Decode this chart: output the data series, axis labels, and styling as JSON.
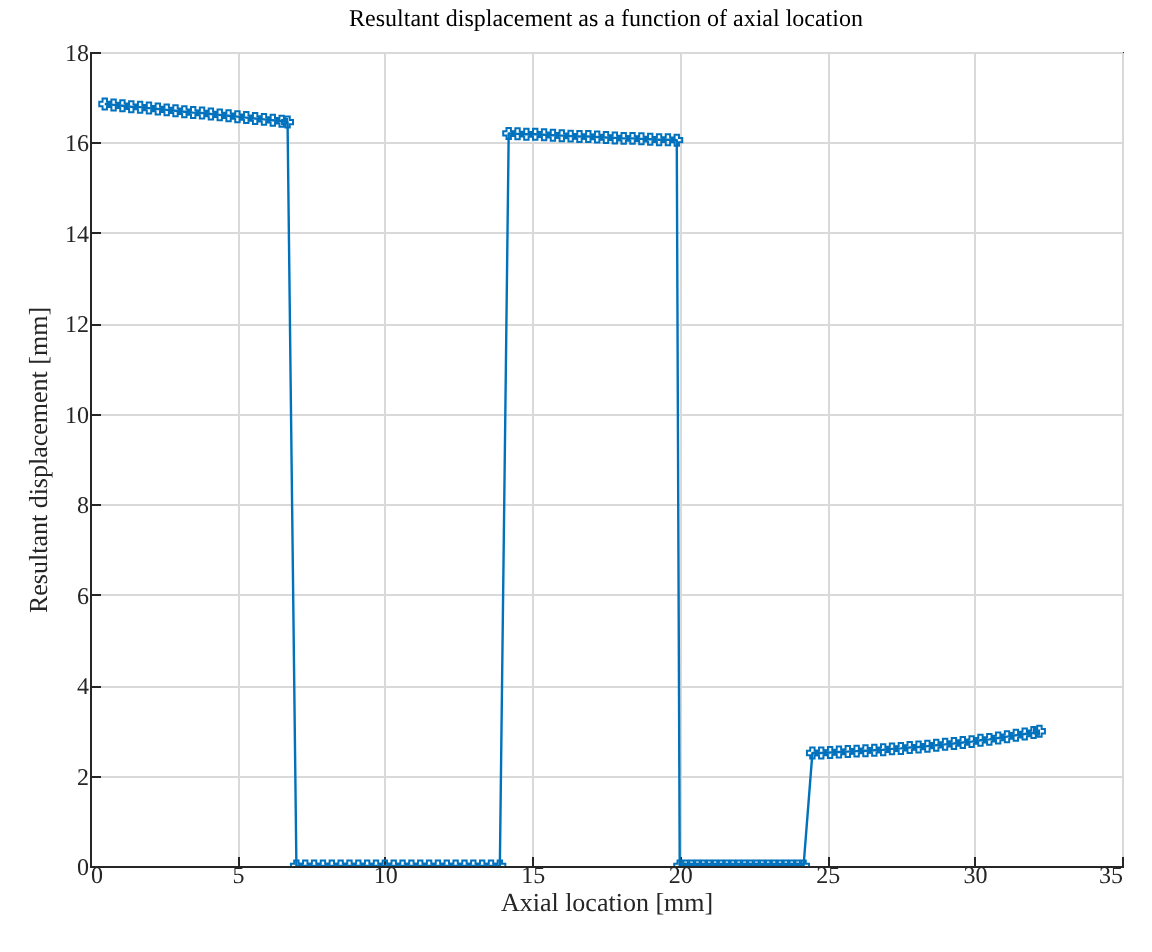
{
  "chart_data": {
    "type": "line",
    "title": "Resultant displacement as a function of axial location",
    "xlabel": "Axial location [mm]",
    "ylabel": "Resultant displacement [mm]",
    "xlim": [
      0,
      35
    ],
    "xticks": [
      0,
      5,
      10,
      15,
      20,
      25,
      30,
      35
    ],
    "ylim": [
      0,
      18
    ],
    "yticks": [
      0,
      2,
      4,
      6,
      8,
      10,
      12,
      14,
      16,
      18
    ],
    "grid": true,
    "marker": "cross",
    "line_style": "solid",
    "x": [
      0.5,
      0.8,
      1.1,
      1.4,
      1.7,
      2.0,
      2.3,
      2.6,
      2.9,
      3.2,
      3.5,
      3.8,
      4.1,
      4.4,
      4.7,
      5.0,
      5.3,
      5.6,
      5.9,
      6.2,
      6.5,
      6.7,
      7.0,
      7.3,
      7.6,
      7.9,
      8.2,
      8.5,
      8.8,
      9.1,
      9.4,
      9.7,
      10.0,
      10.3,
      10.6,
      10.9,
      11.2,
      11.5,
      11.8,
      12.1,
      12.4,
      12.7,
      13.0,
      13.3,
      13.6,
      13.9,
      14.2,
      14.5,
      14.8,
      15.1,
      15.4,
      15.7,
      16.0,
      16.3,
      16.6,
      16.9,
      17.2,
      17.5,
      17.8,
      18.1,
      18.4,
      18.7,
      19.0,
      19.3,
      19.6,
      19.9,
      20.0,
      20.2,
      20.4,
      20.6,
      20.8,
      21.0,
      21.2,
      21.4,
      21.6,
      21.8,
      22.0,
      22.2,
      22.4,
      22.6,
      22.8,
      23.0,
      23.2,
      23.4,
      23.6,
      23.8,
      24.0,
      24.2,
      24.5,
      24.8,
      25.1,
      25.4,
      25.7,
      26.0,
      26.3,
      26.6,
      26.9,
      27.2,
      27.5,
      27.8,
      28.1,
      28.4,
      28.7,
      29.0,
      29.3,
      29.6,
      29.9,
      30.2,
      30.5,
      30.8,
      31.1,
      31.4,
      31.7,
      32.0,
      32.2
    ],
    "series": [
      {
        "color": "#0072bd",
        "values": [
          16.85,
          16.83,
          16.81,
          16.79,
          16.78,
          16.76,
          16.74,
          16.72,
          16.7,
          16.68,
          16.66,
          16.65,
          16.63,
          16.61,
          16.59,
          16.57,
          16.55,
          16.53,
          16.51,
          16.49,
          16.47,
          16.45,
          0,
          0,
          0,
          0,
          0,
          0,
          0,
          0,
          0,
          0,
          0,
          0,
          0,
          0,
          0,
          0,
          0,
          0,
          0,
          0,
          0,
          0,
          0,
          0,
          16.2,
          16.19,
          16.18,
          16.18,
          16.17,
          16.16,
          16.15,
          16.14,
          16.13,
          16.13,
          16.12,
          16.11,
          16.1,
          16.09,
          16.09,
          16.08,
          16.07,
          16.06,
          16.06,
          16.05,
          0,
          0,
          0,
          0,
          0,
          0,
          0,
          0,
          0,
          0,
          0,
          0,
          0,
          0,
          0,
          0,
          0,
          0,
          0,
          0,
          0,
          0,
          2.5,
          2.5,
          2.51,
          2.52,
          2.53,
          2.54,
          2.55,
          2.56,
          2.57,
          2.59,
          2.6,
          2.62,
          2.63,
          2.65,
          2.67,
          2.69,
          2.71,
          2.73,
          2.75,
          2.78,
          2.8,
          2.83,
          2.86,
          2.89,
          2.92,
          2.95,
          2.98
        ]
      }
    ]
  }
}
